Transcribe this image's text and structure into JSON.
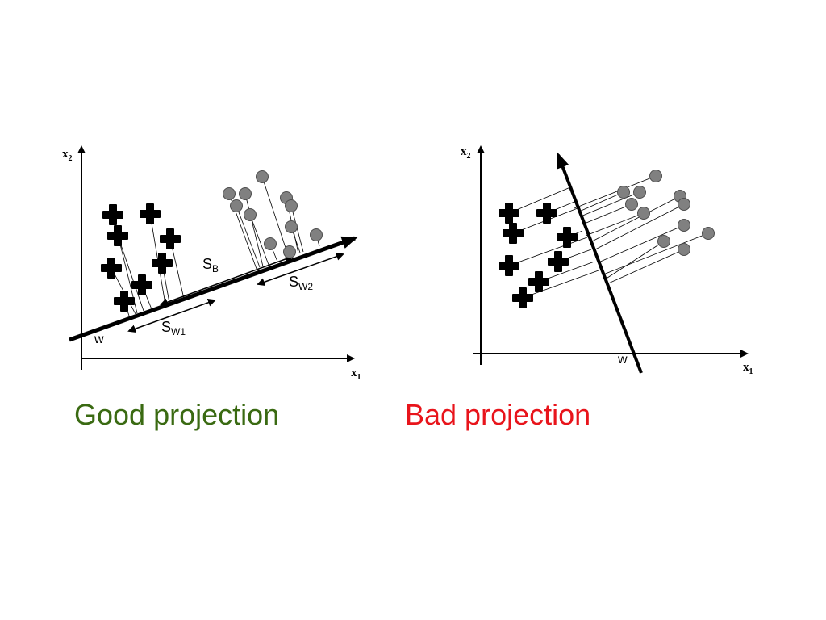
{
  "good": {
    "caption": "Good projection",
    "caption_color": "#3a6a12",
    "axis_x_label": "x",
    "axis_x_sub": "1",
    "axis_y_label": "x",
    "axis_y_sub": "2",
    "w_label": "w",
    "sb_label": "S",
    "sb_sub": "B",
    "sw1_label": "S",
    "sw1_sub": "W1",
    "sw2_label": "S",
    "sw2_sub": "W2"
  },
  "bad": {
    "caption": "Bad projection",
    "caption_color": "#e8141b",
    "axis_x_label": "x",
    "axis_x_sub": "1",
    "axis_y_label": "x",
    "axis_y_sub": "2",
    "w_label": "w"
  },
  "colors": {
    "cross": "#000000",
    "circle_fill": "#808080",
    "circle_stroke": "#4d4d4d",
    "line": "#000000"
  },
  "icons": {
    "class1_marker": "cross-icon",
    "class2_marker": "circle-icon"
  }
}
